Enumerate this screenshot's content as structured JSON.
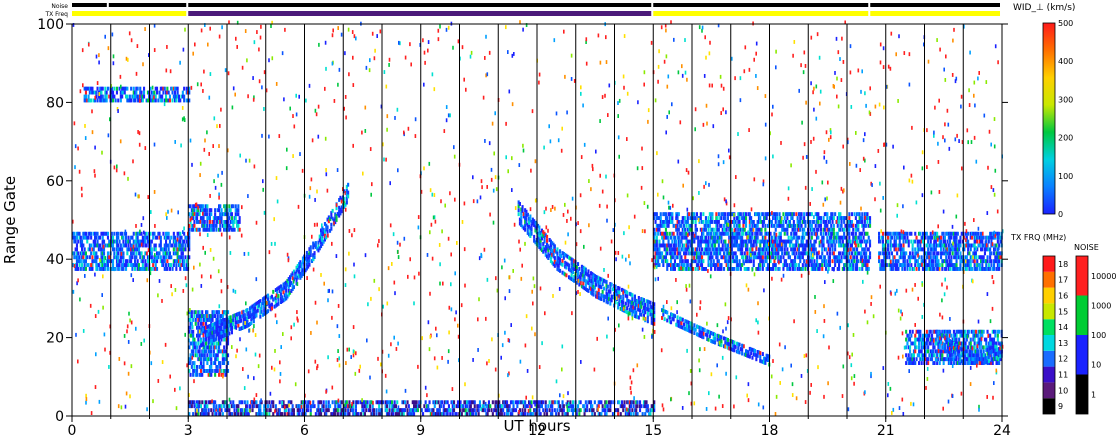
{
  "chart_data": {
    "type": "heatmap",
    "xlabel": "UT hours",
    "ylabel": "Range Gate",
    "xlim": [
      0,
      24
    ],
    "ylim": [
      0,
      100
    ],
    "x_ticks": [
      "0",
      "3",
      "6",
      "9",
      "12",
      "15",
      "18",
      "21",
      "24"
    ],
    "y_ticks": [
      "0",
      "20",
      "40",
      "60",
      "80",
      "100"
    ],
    "grid": "vertical lines every hour",
    "top_bars": {
      "noise_label": "Noise",
      "txfreq_label": "TX Freq",
      "noise_segments": [
        {
          "from": 0,
          "to": 0.95,
          "color": "#000000"
        },
        {
          "from": 0.95,
          "to": 3.0,
          "color": "#000000"
        },
        {
          "from": 3.0,
          "to": 15.0,
          "color": "#000000"
        },
        {
          "from": 15.0,
          "to": 20.6,
          "color": "#000000"
        },
        {
          "from": 20.6,
          "to": 24,
          "color": "#000000"
        }
      ],
      "txfreq_segments": [
        {
          "from": 0,
          "to": 3.0,
          "color": "#ffff00"
        },
        {
          "from": 3.0,
          "to": 15.0,
          "color": "#4b1a7a"
        },
        {
          "from": 15.0,
          "to": 20.6,
          "color": "#ffff00"
        },
        {
          "from": 20.6,
          "to": 24,
          "color": "#ffff00"
        }
      ]
    },
    "echo_bands": [
      {
        "t0": 0.0,
        "t1": 3.0,
        "g0": 37,
        "g1": 47,
        "desc": "dense blue"
      },
      {
        "t0": 0.3,
        "t1": 3.0,
        "g0": 80,
        "g1": 84,
        "desc": "blue band"
      },
      {
        "t0": 3.0,
        "t1": 4.0,
        "g0": 10,
        "g1": 27,
        "desc": "dense blue"
      },
      {
        "t0": 3.0,
        "t1": 4.3,
        "g0": 47,
        "g1": 54,
        "desc": "blue"
      },
      {
        "t0": 3.0,
        "t1": 15.0,
        "g0": 0,
        "g1": 4,
        "desc": "low-range ground scatter"
      },
      {
        "t0": 15.0,
        "t1": 20.6,
        "g0": 37,
        "g1": 52,
        "desc": "dense blue"
      },
      {
        "t0": 20.8,
        "t1": 24.0,
        "g0": 37,
        "g1": 47,
        "desc": "dense blue"
      },
      {
        "t0": 21.5,
        "t1": 24.0,
        "g0": 13,
        "g1": 22,
        "desc": "blue band"
      }
    ],
    "echo_tracks": [
      {
        "points": [
          [
            3.3,
            20
          ],
          [
            4.5,
            25
          ],
          [
            5.5,
            32
          ],
          [
            6.2,
            42
          ],
          [
            6.8,
            52
          ],
          [
            7.1,
            57
          ]
        ],
        "width": 5
      },
      {
        "points": [
          [
            11.5,
            52
          ],
          [
            12.5,
            40
          ],
          [
            13.5,
            33
          ],
          [
            14.5,
            28
          ],
          [
            15.0,
            26
          ]
        ],
        "width": 6
      },
      {
        "points": [
          [
            15.2,
            26
          ],
          [
            16.5,
            20
          ],
          [
            17.5,
            16
          ],
          [
            18.0,
            14
          ]
        ],
        "width": 3
      },
      {
        "points": [
          [
            22.3,
            20
          ],
          [
            23.0,
            15
          ],
          [
            23.5,
            15
          ],
          [
            24.0,
            17
          ]
        ],
        "width": 4
      }
    ],
    "colorbar_width": {
      "label": "WID_⊥ (km/s)",
      "ticks": [
        "0",
        "100",
        "200",
        "300",
        "400",
        "500"
      ],
      "range": [
        0,
        500
      ]
    },
    "colorbar_txfreq": {
      "label": "TX FRQ (MHz)",
      "ticks": [
        "9",
        "10",
        "11",
        "12",
        "13",
        "14",
        "15",
        "16",
        "17",
        "18"
      ],
      "colors": [
        "#000000",
        "#5a1a7a",
        "#3a0fc8",
        "#1a6cff",
        "#00d8e0",
        "#00e060",
        "#c8e800",
        "#ffd000",
        "#ff7000",
        "#ff1a1a"
      ]
    },
    "colorbar_noise": {
      "label": "NOISE",
      "ticks": [
        "1",
        "10",
        "100",
        "1000",
        "10000"
      ],
      "colors": [
        "#000000",
        "#1a22ff",
        "#00cc33",
        "#ff2020"
      ]
    },
    "palette": [
      "#1a22ff",
      "#0a55ff",
      "#00a0ff",
      "#00e0d0",
      "#00c840",
      "#8aea00",
      "#ffe000",
      "#ff9000",
      "#ff2020",
      "#5a1a7a"
    ]
  }
}
